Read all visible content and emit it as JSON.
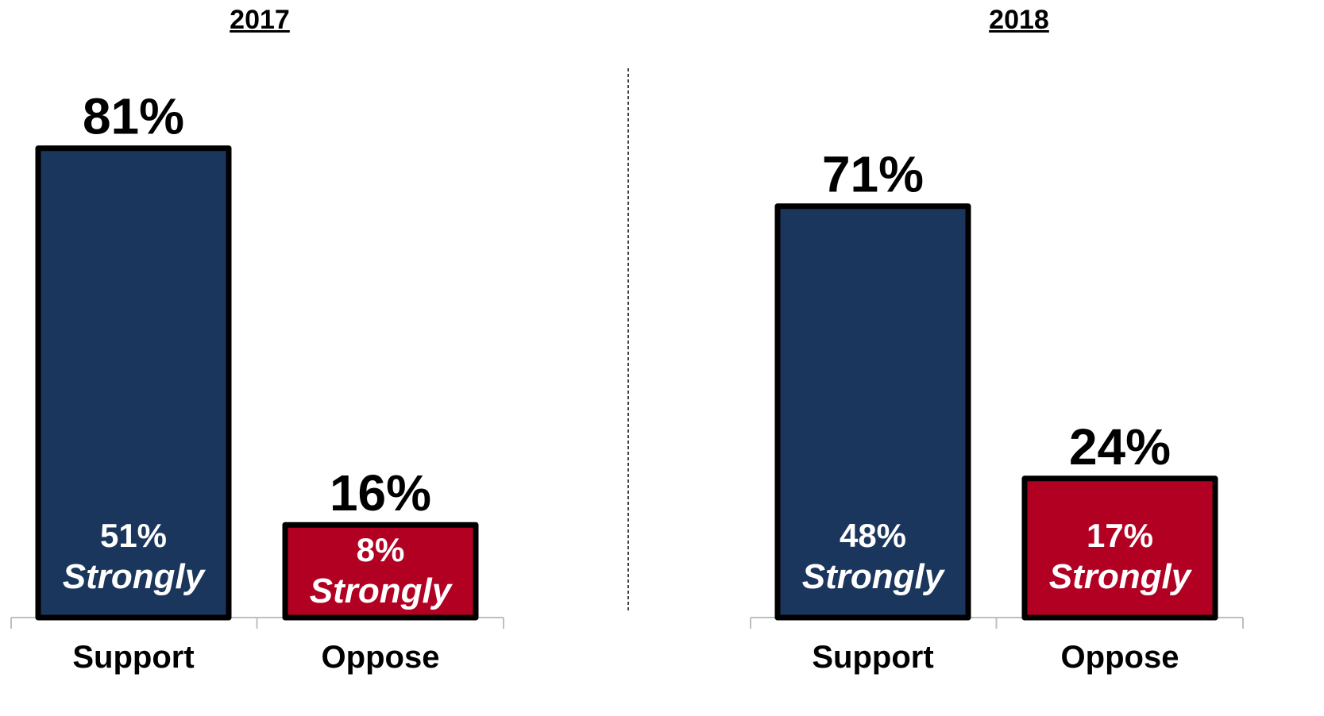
{
  "chart_data": {
    "type": "bar",
    "groups": [
      {
        "label": "2017",
        "categories": [
          "Support",
          "Oppose"
        ],
        "values": [
          81,
          16
        ],
        "strongly_values": [
          51,
          8
        ],
        "labels": [
          "81%",
          "16%"
        ],
        "strongly_labels": [
          "51%",
          "8%"
        ]
      },
      {
        "label": "2018",
        "categories": [
          "Support",
          "Oppose"
        ],
        "values": [
          71,
          24
        ],
        "strongly_values": [
          48,
          17
        ],
        "labels": [
          "71%",
          "24%"
        ],
        "strongly_labels": [
          "48%",
          "17%"
        ]
      }
    ],
    "strongly_word": "Strongly",
    "ylim": [
      0,
      100
    ],
    "grid": false,
    "colors": {
      "Support": "#1b365d",
      "Oppose": "#b20023",
      "outline": "#000000"
    }
  }
}
